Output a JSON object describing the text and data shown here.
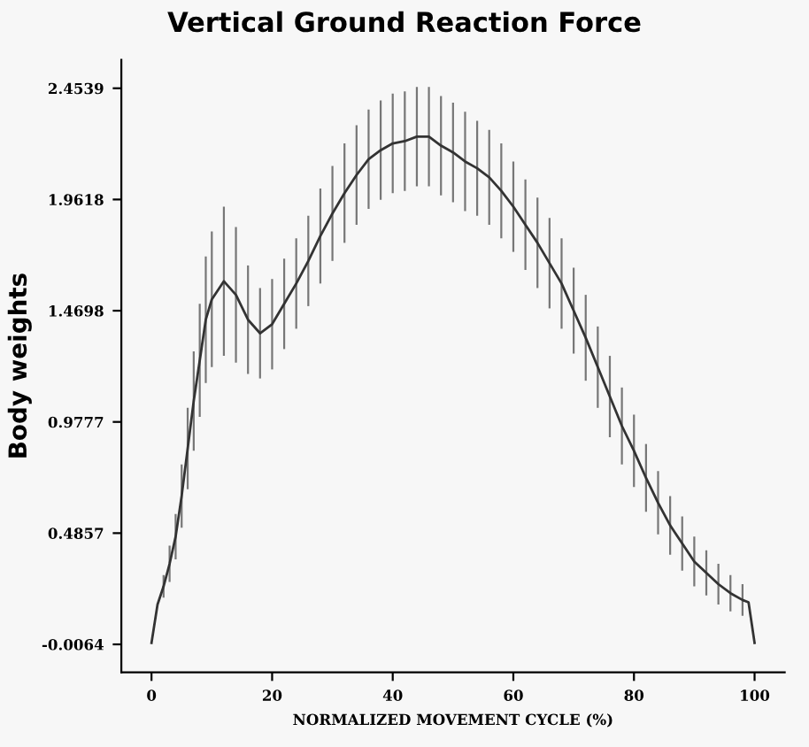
{
  "chart_data": {
    "type": "line",
    "title": "Vertical Ground Reaction Force",
    "xlabel": "NORMALIZED MOVEMENT CYCLE (%)",
    "ylabel": "Body weights",
    "series": [
      {
        "color": "#333333",
        "x": [
          0,
          1,
          2,
          3,
          4,
          5,
          6,
          7,
          8,
          9,
          10,
          12,
          14,
          16,
          18,
          20,
          22,
          24,
          26,
          28,
          30,
          32,
          34,
          36,
          38,
          40,
          42,
          44,
          46,
          48,
          50,
          52,
          54,
          56,
          58,
          60,
          62,
          64,
          66,
          68,
          70,
          72,
          74,
          76,
          78,
          80,
          82,
          84,
          86,
          88,
          90,
          92,
          94,
          96,
          98,
          99,
          100
        ],
        "values": [
          0.0,
          0.17,
          0.25,
          0.35,
          0.47,
          0.65,
          0.86,
          1.07,
          1.25,
          1.43,
          1.52,
          1.6,
          1.54,
          1.43,
          1.37,
          1.41,
          1.5,
          1.59,
          1.69,
          1.8,
          1.9,
          1.99,
          2.07,
          2.14,
          2.18,
          2.21,
          2.22,
          2.24,
          2.24,
          2.2,
          2.17,
          2.13,
          2.1,
          2.06,
          2.0,
          1.93,
          1.85,
          1.77,
          1.68,
          1.59,
          1.47,
          1.35,
          1.22,
          1.09,
          0.96,
          0.85,
          0.73,
          0.62,
          0.52,
          0.44,
          0.36,
          0.31,
          0.26,
          0.22,
          0.19,
          0.18,
          0.0
        ],
        "errors": [
          null,
          null,
          0.05,
          0.08,
          0.1,
          0.14,
          0.18,
          0.22,
          0.25,
          0.28,
          0.3,
          0.33,
          0.3,
          0.24,
          0.2,
          0.2,
          0.2,
          0.2,
          0.2,
          0.21,
          0.21,
          0.22,
          0.22,
          0.22,
          0.22,
          0.22,
          0.22,
          0.22,
          0.22,
          0.22,
          0.22,
          0.22,
          0.21,
          0.21,
          0.21,
          0.2,
          0.2,
          0.2,
          0.2,
          0.2,
          0.19,
          0.19,
          0.18,
          0.18,
          0.17,
          0.16,
          0.15,
          0.14,
          0.13,
          0.12,
          0.11,
          0.1,
          0.09,
          0.08,
          0.07,
          null,
          null
        ]
      }
    ],
    "xlim": [
      -5,
      105
    ],
    "ylim": [
      -0.13,
      2.58
    ],
    "xticks": [
      0,
      20,
      40,
      60,
      80,
      100
    ],
    "yticks": [
      -0.0064,
      0.4857,
      0.9777,
      1.4698,
      1.9618,
      2.4539
    ],
    "grid": false,
    "legend": false,
    "marker": "none",
    "line_style": "solid"
  }
}
